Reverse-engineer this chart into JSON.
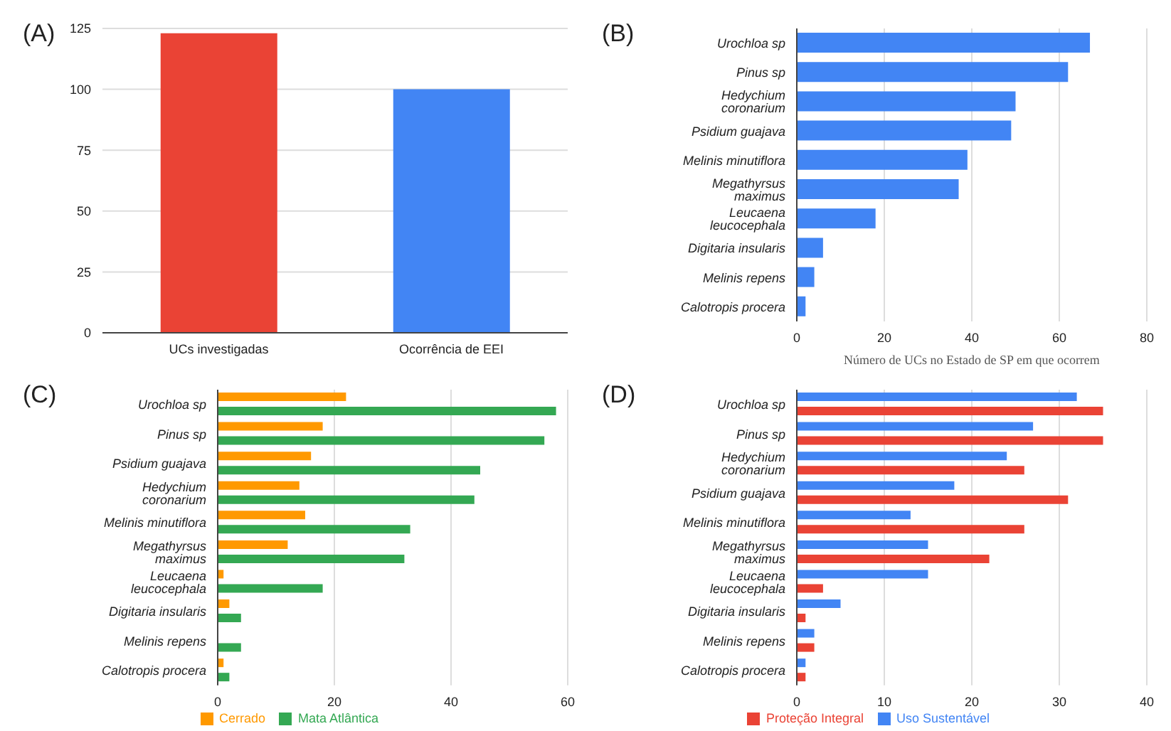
{
  "chart_data": [
    {
      "type": "bar",
      "title": "(A)",
      "categories": [
        "UCs investigadas",
        "Ocorrência de EEI"
      ],
      "values": [
        123,
        100
      ],
      "colors": [
        "#ea4335",
        "#4285f4"
      ],
      "ylim": [
        0,
        125
      ],
      "yticks": [
        0,
        25,
        50,
        75,
        100,
        125
      ],
      "grid": "y"
    },
    {
      "type": "bar",
      "title": "(B)",
      "orientation": "horizontal",
      "categories": [
        "Urochloa sp",
        "Pinus sp",
        "Hedychium coronarium",
        "Psidium guajava",
        "Melinis minutiflora",
        "Megathyrsus maximus",
        "Leucaena leucocephala",
        "Digitaria insularis",
        "Melinis repens",
        "Calotropis procera"
      ],
      "values": [
        67,
        62,
        50,
        49,
        39,
        37,
        18,
        6,
        4,
        2
      ],
      "color": "#4285f4",
      "xlim": [
        0,
        80
      ],
      "xticks": [
        0,
        20,
        40,
        60,
        80
      ],
      "xlabel": "Número de UCs no Estado de SP em que ocorrem",
      "grid": "x"
    },
    {
      "type": "bar",
      "title": "(C)",
      "orientation": "horizontal",
      "categories": [
        "Urochloa sp",
        "Pinus sp",
        "Psidium guajava",
        "Hedychium coronarium",
        "Melinis minutiflora",
        "Megathyrsus maximus",
        "Leucaena leucocephala",
        "Digitaria insularis",
        "Melinis repens",
        "Calotropis procera"
      ],
      "series": [
        {
          "name": "Cerrado",
          "color": "#ff9900",
          "values": [
            22,
            18,
            16,
            14,
            15,
            12,
            1,
            2,
            0,
            1
          ]
        },
        {
          "name": "Mata Atlântica",
          "color": "#34a853",
          "values": [
            58,
            56,
            45,
            44,
            33,
            32,
            18,
            4,
            4,
            2
          ]
        }
      ],
      "xlim": [
        0,
        60
      ],
      "xticks": [
        0,
        20,
        40,
        60
      ],
      "grid": "x",
      "legend": "bottom"
    },
    {
      "type": "bar",
      "title": "(D)",
      "orientation": "horizontal",
      "categories": [
        "Urochloa sp",
        "Pinus sp",
        "Hedychium coronarium",
        "Psidium guajava",
        "Melinis minutiflora",
        "Megathyrsus maximus",
        "Leucaena leucocephala",
        "Digitaria insularis",
        "Melinis repens",
        "Calotropis procera"
      ],
      "series": [
        {
          "name": "Uso Sustentável",
          "color": "#4285f4",
          "values": [
            32,
            27,
            24,
            18,
            13,
            15,
            15,
            5,
            2,
            1
          ]
        },
        {
          "name": "Proteção Integral",
          "color": "#ea4335",
          "values": [
            35,
            35,
            26,
            31,
            26,
            22,
            3,
            1,
            2,
            1
          ]
        }
      ],
      "xlim": [
        0,
        40
      ],
      "xticks": [
        0,
        10,
        20,
        30,
        40
      ],
      "grid": "x",
      "legend": "bottom"
    }
  ]
}
